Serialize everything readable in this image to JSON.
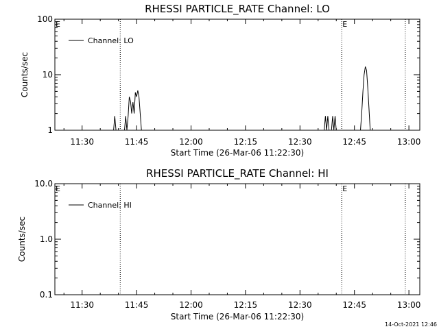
{
  "timestamp": "14-Oct-2021 12:46",
  "chart_data": [
    {
      "type": "line",
      "title": "RHESSI PARTICLE_RATE Channel: LO",
      "xlabel": "Start Time (26-Mar-06 11:22:30)",
      "ylabel": "Counts/sec",
      "yscale": "log",
      "ylim": [
        1,
        100
      ],
      "xlim": [
        "11:22:30",
        "13:03:00"
      ],
      "xticks": [
        "11:30",
        "11:45",
        "12:00",
        "12:15",
        "12:30",
        "12:45",
        "13:00"
      ],
      "yticks": [
        "1",
        "10",
        "100"
      ],
      "legend": {
        "entries": [
          "Channel: LO"
        ],
        "placement": "top-left"
      },
      "event_lines": [
        "11:40:30",
        "12:41:30",
        "12:59:00"
      ],
      "event_labels": [
        {
          "text": "E",
          "x": "11:22:30"
        },
        {
          "text": "E",
          "x": "12:41:30"
        }
      ],
      "series": [
        {
          "name": "Channel: LO",
          "points": [
            [
              "11:38:40",
              1
            ],
            [
              "11:39:00",
              1.8
            ],
            [
              "11:39:20",
              1
            ],
            [
              "11:41:40",
              1
            ],
            [
              "11:42:00",
              1.8
            ],
            [
              "11:42:20",
              1
            ],
            [
              "11:42:40",
              1.8
            ],
            [
              "11:43:00",
              4
            ],
            [
              "11:43:20",
              3.3
            ],
            [
              "11:43:40",
              2
            ],
            [
              "11:44:00",
              3.2
            ],
            [
              "11:44:20",
              2
            ],
            [
              "11:44:40",
              4.8
            ],
            [
              "11:45:00",
              4
            ],
            [
              "11:45:20",
              5.2
            ],
            [
              "11:45:40",
              4
            ],
            [
              "11:46:00",
              2
            ],
            [
              "11:46:20",
              1
            ],
            [
              "12:36:40",
              1
            ],
            [
              "12:37:00",
              1.8
            ],
            [
              "12:37:20",
              1
            ],
            [
              "12:37:40",
              1.8
            ],
            [
              "12:38:00",
              1
            ],
            [
              "12:38:40",
              1
            ],
            [
              "12:39:00",
              1.8
            ],
            [
              "12:39:20",
              1
            ],
            [
              "12:39:40",
              1.8
            ],
            [
              "12:40:00",
              1
            ],
            [
              "12:46:40",
              1
            ],
            [
              "12:47:00",
              2
            ],
            [
              "12:47:20",
              5
            ],
            [
              "12:47:40",
              10
            ],
            [
              "12:48:00",
              14
            ],
            [
              "12:48:20",
              12
            ],
            [
              "12:48:40",
              6
            ],
            [
              "12:49:00",
              2.5
            ],
            [
              "12:49:20",
              1
            ]
          ]
        }
      ]
    },
    {
      "type": "line",
      "title": "RHESSI PARTICLE_RATE Channel: HI",
      "xlabel": "Start Time (26-Mar-06 11:22:30)",
      "ylabel": "Counts/sec",
      "yscale": "log",
      "ylim": [
        0.1,
        10
      ],
      "xlim": [
        "11:22:30",
        "13:03:00"
      ],
      "xticks": [
        "11:30",
        "11:45",
        "12:00",
        "12:15",
        "12:30",
        "12:45",
        "13:00"
      ],
      "yticks": [
        "0.1",
        "1.0",
        "10.0"
      ],
      "legend": {
        "entries": [
          "Channel: HI"
        ],
        "placement": "top-left"
      },
      "event_lines": [
        "11:40:30",
        "12:41:30",
        "12:59:00"
      ],
      "event_labels": [
        {
          "text": "E",
          "x": "11:22:30"
        },
        {
          "text": "E",
          "x": "12:41:30"
        }
      ],
      "series": [
        {
          "name": "Channel: HI",
          "points": []
        }
      ]
    }
  ]
}
